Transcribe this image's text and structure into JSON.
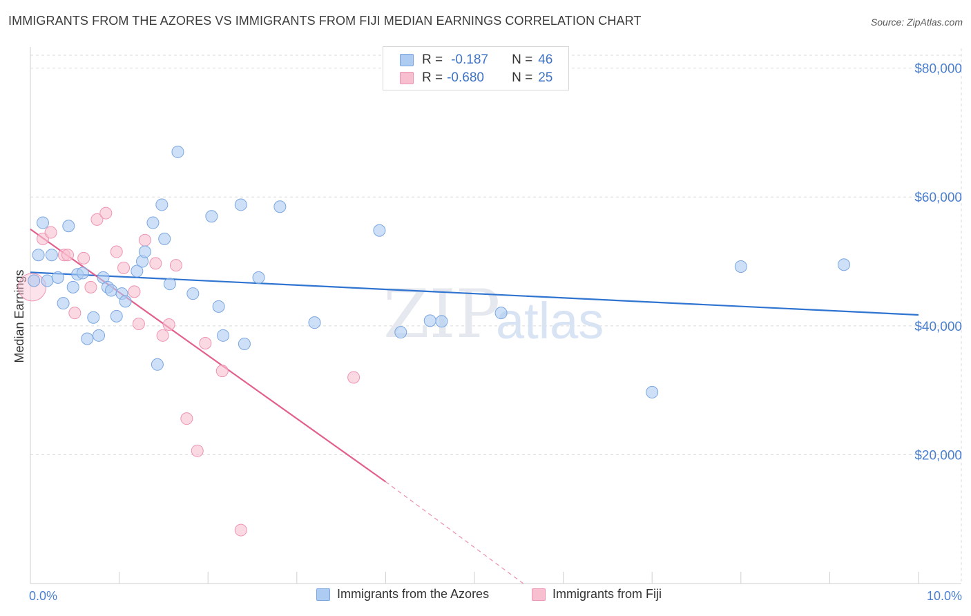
{
  "title": "IMMIGRANTS FROM THE AZORES VS IMMIGRANTS FROM FIJI MEDIAN EARNINGS CORRELATION CHART",
  "source": "Source: ZipAtlas.com",
  "watermark": {
    "zip": "ZIP",
    "atlas": "atlas"
  },
  "colors": {
    "azores_fill": "#aecbf2",
    "azores_stroke": "#7aa6e0",
    "azores_line": "#2f74d0",
    "fiji_fill": "#f8bfd0",
    "fiji_stroke": "#ee94b3",
    "fiji_line": "#e3608e",
    "grid": "#d9d9d9",
    "axis_text": "#4a7fcf"
  },
  "stats": {
    "azores": {
      "r_label": "R =",
      "r_value": "-0.187",
      "n_label": "N =",
      "n_value": "46"
    },
    "fiji": {
      "r_label": "R =",
      "r_value": "-0.680",
      "n_label": "N =",
      "n_value": "25"
    }
  },
  "legend": {
    "azores": "Immigrants from the Azores",
    "fiji": "Immigrants from Fiji"
  },
  "chart_data": {
    "type": "scatter",
    "title": "IMMIGRANTS FROM THE AZORES VS IMMIGRANTS FROM FIJI MEDIAN EARNINGS CORRELATION CHART",
    "xlabel": "",
    "ylabel": "Median Earnings",
    "xlim": [
      0,
      10
    ],
    "ylim": [
      0,
      82000
    ],
    "x_tick_labels": [
      "0.0%",
      "10.0%"
    ],
    "y_ticks": [
      20000,
      40000,
      60000,
      80000
    ],
    "y_tick_labels": [
      "$20,000",
      "$40,000",
      "$60,000",
      "$80,000"
    ],
    "series": [
      {
        "name": "Immigrants from the Azores",
        "trend": {
          "x0": 0.0,
          "y0": 48300,
          "x1": 10.0,
          "y1": 41700
        },
        "points": [
          {
            "x": 0.04,
            "y": 47000
          },
          {
            "x": 0.09,
            "y": 51000
          },
          {
            "x": 0.14,
            "y": 56000
          },
          {
            "x": 0.19,
            "y": 47000
          },
          {
            "x": 0.24,
            "y": 51000
          },
          {
            "x": 0.31,
            "y": 47500
          },
          {
            "x": 0.37,
            "y": 43500
          },
          {
            "x": 0.43,
            "y": 55500
          },
          {
            "x": 0.48,
            "y": 46000
          },
          {
            "x": 0.53,
            "y": 48000
          },
          {
            "x": 0.59,
            "y": 48200
          },
          {
            "x": 0.64,
            "y": 38000
          },
          {
            "x": 0.71,
            "y": 41300
          },
          {
            "x": 0.77,
            "y": 38500
          },
          {
            "x": 0.82,
            "y": 47500
          },
          {
            "x": 0.87,
            "y": 46000
          },
          {
            "x": 0.91,
            "y": 45500
          },
          {
            "x": 0.97,
            "y": 41500
          },
          {
            "x": 1.03,
            "y": 45000
          },
          {
            "x": 1.07,
            "y": 43800
          },
          {
            "x": 1.2,
            "y": 48500
          },
          {
            "x": 1.26,
            "y": 50000
          },
          {
            "x": 1.29,
            "y": 51500
          },
          {
            "x": 1.38,
            "y": 56000
          },
          {
            "x": 1.43,
            "y": 34000
          },
          {
            "x": 1.48,
            "y": 58800
          },
          {
            "x": 1.51,
            "y": 53500
          },
          {
            "x": 1.57,
            "y": 46500
          },
          {
            "x": 1.66,
            "y": 67000
          },
          {
            "x": 1.83,
            "y": 45000
          },
          {
            "x": 2.04,
            "y": 57000
          },
          {
            "x": 2.12,
            "y": 43000
          },
          {
            "x": 2.17,
            "y": 38500
          },
          {
            "x": 2.37,
            "y": 58800
          },
          {
            "x": 2.41,
            "y": 37200
          },
          {
            "x": 2.57,
            "y": 47500
          },
          {
            "x": 2.81,
            "y": 58500
          },
          {
            "x": 3.2,
            "y": 40500
          },
          {
            "x": 3.93,
            "y": 54800
          },
          {
            "x": 4.17,
            "y": 39000
          },
          {
            "x": 4.5,
            "y": 40800
          },
          {
            "x": 4.63,
            "y": 40700
          },
          {
            "x": 5.3,
            "y": 42000
          },
          {
            "x": 7.0,
            "y": 29700
          },
          {
            "x": 8.0,
            "y": 49200
          },
          {
            "x": 9.16,
            "y": 49500
          }
        ]
      },
      {
        "name": "Immigrants from Fiji",
        "trend": {
          "x0": 0.0,
          "y0": 55000,
          "x1": 4.0,
          "y1": 15800,
          "dash_x1": 5.55,
          "dash_y1": 0
        },
        "points": [
          {
            "x": 0.02,
            "y": 46000,
            "big": true
          },
          {
            "x": 0.14,
            "y": 53500
          },
          {
            "x": 0.23,
            "y": 54500
          },
          {
            "x": 0.38,
            "y": 51000
          },
          {
            "x": 0.42,
            "y": 51000
          },
          {
            "x": 0.5,
            "y": 42000
          },
          {
            "x": 0.6,
            "y": 50500
          },
          {
            "x": 0.68,
            "y": 46000
          },
          {
            "x": 0.75,
            "y": 56500
          },
          {
            "x": 0.85,
            "y": 57500
          },
          {
            "x": 0.97,
            "y": 51500
          },
          {
            "x": 1.05,
            "y": 49000
          },
          {
            "x": 1.17,
            "y": 45300
          },
          {
            "x": 1.22,
            "y": 40300
          },
          {
            "x": 1.29,
            "y": 53300
          },
          {
            "x": 1.41,
            "y": 49700
          },
          {
            "x": 1.49,
            "y": 38500
          },
          {
            "x": 1.56,
            "y": 40200
          },
          {
            "x": 1.64,
            "y": 49400
          },
          {
            "x": 1.76,
            "y": 25600
          },
          {
            "x": 1.88,
            "y": 20600
          },
          {
            "x": 1.97,
            "y": 37300
          },
          {
            "x": 2.16,
            "y": 33000
          },
          {
            "x": 2.37,
            "y": 8300
          },
          {
            "x": 3.64,
            "y": 32000
          }
        ]
      }
    ]
  }
}
